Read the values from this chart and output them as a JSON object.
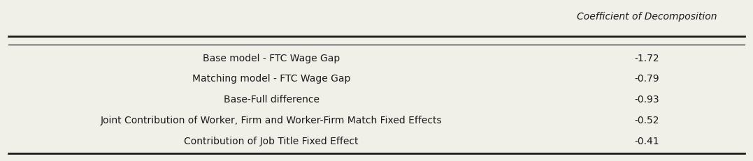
{
  "col_header": "Coefficient of Decomposition",
  "rows": [
    {
      "label": "Base model - FTC Wage Gap",
      "value": "-1.72"
    },
    {
      "label": "Matching model - FTC Wage Gap",
      "value": "-0.79"
    },
    {
      "label": "Base-Full difference",
      "value": "-0.93"
    },
    {
      "label": "Joint Contribution of Worker, Firm and Worker-Firm Match Fixed Effects",
      "value": "-0.52"
    },
    {
      "label": "Contribution of Job Title Fixed Effect",
      "value": "-0.41"
    }
  ],
  "background_color": "#f0efe8",
  "text_color": "#1a1a1a",
  "font_size": 10,
  "header_font_size": 10,
  "col_split": 0.72
}
